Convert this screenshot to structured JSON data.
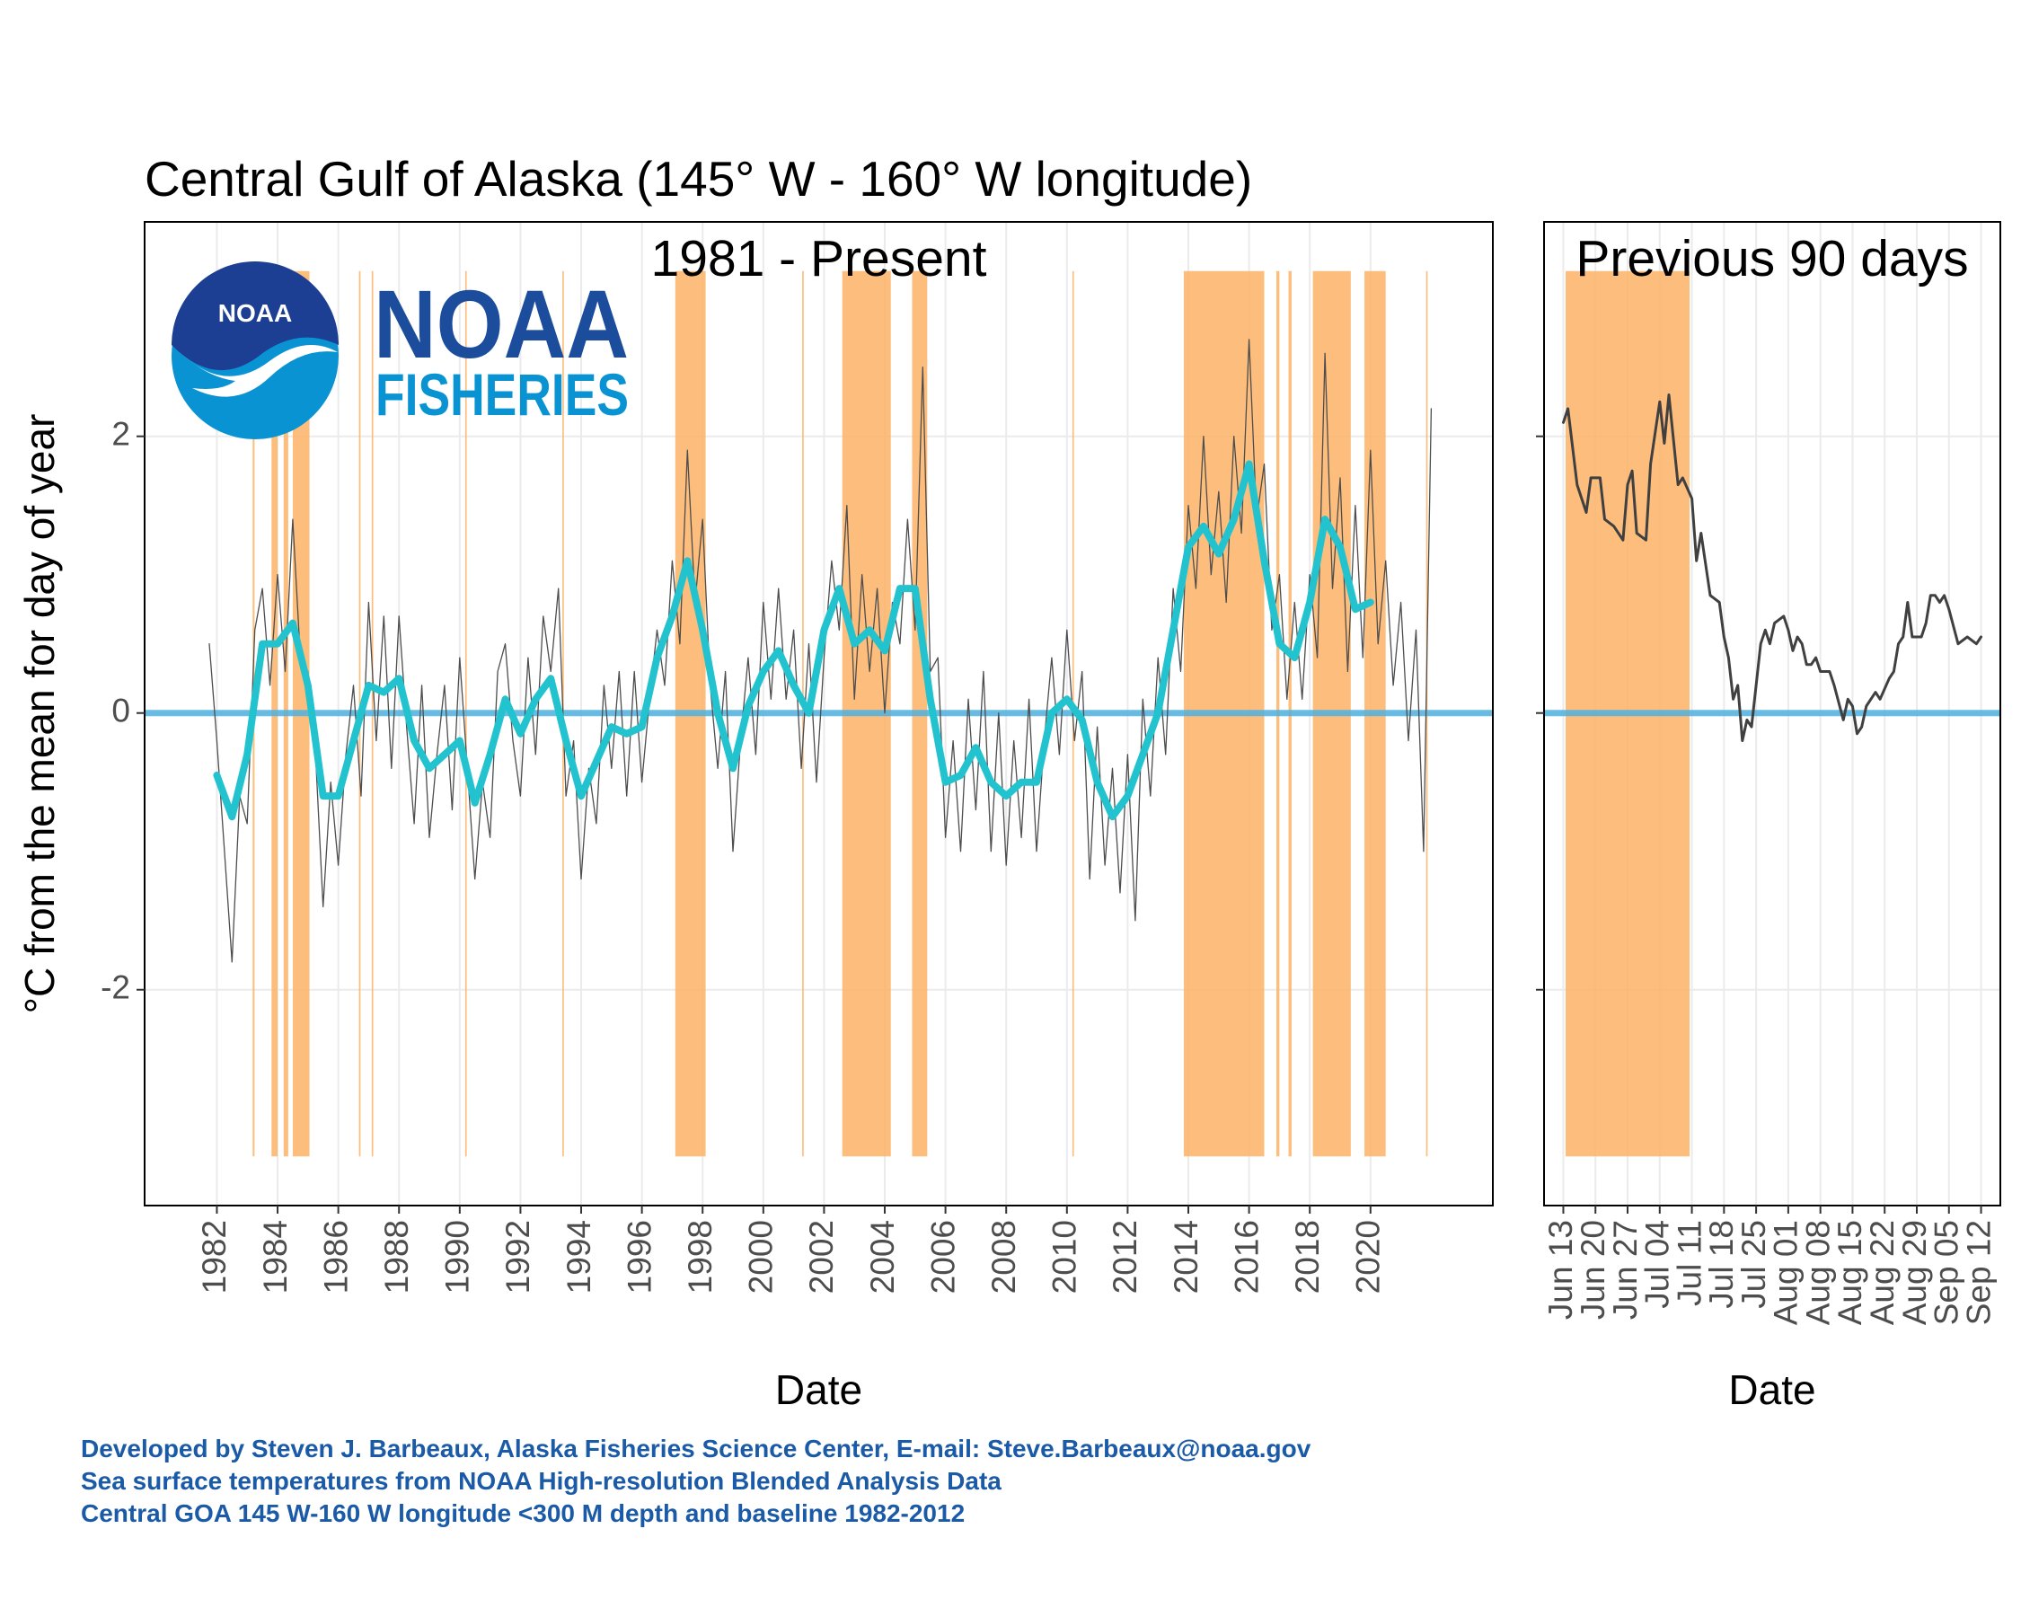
{
  "title": "Central Gulf of Alaska (145° W - 160° W longitude)",
  "logo": {
    "name": "NOAA",
    "division": "FISHERIES"
  },
  "footer": [
    "Developed by Steven J. Barbeaux, Alaska Fisheries Science Center, E-mail: Steve.Barbeaux@noaa.gov",
    "Sea surface temperatures from NOAA High-resolution Blended Analysis Data",
    "Central GOA 145 W-160 W longitude <300 M depth and baseline 1982-2012"
  ],
  "chart_data": [
    {
      "type": "line",
      "title": "1981 - Present",
      "x_label": "Date",
      "y_label": "°C from the mean for day of year",
      "xlim": [
        1979.62,
        2024.03
      ],
      "ylim": [
        -3.56,
        3.55
      ],
      "xticks": [
        1982,
        1984,
        1986,
        1988,
        1990,
        1992,
        1994,
        1996,
        1998,
        2000,
        2002,
        2004,
        2006,
        2008,
        2010,
        2012,
        2014,
        2016,
        2018,
        2020
      ],
      "yticks": [
        -2,
        0,
        2
      ],
      "y_tick_labels": true,
      "grid": true,
      "hline": 0,
      "hline_color": "#4fb0de",
      "band_color": "#fdb366",
      "bands": [
        [
          1983.18,
          1983.24
        ],
        [
          1983.8,
          1984.0
        ],
        [
          1984.2,
          1984.35
        ],
        [
          1984.5,
          1985.05
        ],
        [
          1986.68,
          1986.73
        ],
        [
          1987.1,
          1987.15
        ],
        [
          1990.18,
          1990.23
        ],
        [
          1993.38,
          1993.43
        ],
        [
          1997.1,
          1998.1
        ],
        [
          2001.28,
          2001.33
        ],
        [
          2002.6,
          2004.2
        ],
        [
          2004.9,
          2005.4
        ],
        [
          2010.18,
          2010.23
        ],
        [
          2013.85,
          2016.5
        ],
        [
          2016.9,
          2017.0
        ],
        [
          2017.3,
          2017.4
        ],
        [
          2018.1,
          2019.35
        ],
        [
          2019.8,
          2020.5
        ],
        [
          2021.83,
          2021.88
        ]
      ],
      "series": [
        {
          "color": "#4d4d4d",
          "width": 1.3,
          "x": [
            1981.75,
            1982,
            1982.25,
            1982.5,
            1982.75,
            1983,
            1983.25,
            1983.5,
            1983.75,
            1984,
            1984.25,
            1984.5,
            1984.75,
            1985,
            1985.25,
            1985.5,
            1985.75,
            1986,
            1986.25,
            1986.5,
            1986.75,
            1987,
            1987.25,
            1987.5,
            1987.75,
            1988,
            1988.25,
            1988.5,
            1988.75,
            1989,
            1989.25,
            1989.5,
            1989.75,
            1990,
            1990.25,
            1990.5,
            1990.75,
            1991,
            1991.25,
            1991.5,
            1991.75,
            1992,
            1992.25,
            1992.5,
            1992.75,
            1993,
            1993.25,
            1993.5,
            1993.75,
            1994,
            1994.25,
            1994.5,
            1994.75,
            1995,
            1995.25,
            1995.5,
            1995.75,
            1996,
            1996.25,
            1996.5,
            1996.75,
            1997,
            1997.25,
            1997.5,
            1997.75,
            1998,
            1998.25,
            1998.5,
            1998.75,
            1999,
            1999.25,
            1999.5,
            1999.75,
            2000,
            2000.25,
            2000.5,
            2000.75,
            2001,
            2001.25,
            2001.5,
            2001.75,
            2002,
            2002.25,
            2002.5,
            2002.75,
            2003,
            2003.25,
            2003.5,
            2003.75,
            2004,
            2004.25,
            2004.5,
            2004.75,
            2005,
            2005.25,
            2005.5,
            2005.75,
            2006,
            2006.25,
            2006.5,
            2006.75,
            2007,
            2007.25,
            2007.5,
            2007.75,
            2008,
            2008.25,
            2008.5,
            2008.75,
            2009,
            2009.25,
            2009.5,
            2009.75,
            2010,
            2010.25,
            2010.5,
            2010.75,
            2011,
            2011.25,
            2011.5,
            2011.75,
            2012,
            2012.25,
            2012.5,
            2012.75,
            2013,
            2013.25,
            2013.5,
            2013.75,
            2014,
            2014.25,
            2014.5,
            2014.75,
            2015,
            2015.25,
            2015.5,
            2015.75,
            2016,
            2016.25,
            2016.5,
            2016.75,
            2017,
            2017.25,
            2017.5,
            2017.75,
            2018,
            2018.25,
            2018.5,
            2018.75,
            2019,
            2019.25,
            2019.5,
            2019.75,
            2020,
            2020.25,
            2020.5,
            2020.75,
            2021,
            2021.25,
            2021.5,
            2021.75,
            2022
          ],
          "values": [
            0.5,
            -0.2,
            -1.0,
            -1.8,
            -0.6,
            -0.8,
            0.6,
            0.9,
            0.2,
            1.0,
            0.3,
            1.4,
            0.4,
            0.3,
            -0.3,
            -1.4,
            -0.5,
            -1.1,
            -0.3,
            0.2,
            -0.6,
            0.8,
            -0.2,
            0.7,
            -0.4,
            0.7,
            -0.1,
            -0.8,
            0.2,
            -0.9,
            -0.3,
            0.2,
            -0.7,
            0.4,
            -0.4,
            -1.2,
            -0.5,
            -0.9,
            0.3,
            0.5,
            -0.2,
            -0.6,
            0.4,
            -0.3,
            0.7,
            0.3,
            0.9,
            -0.6,
            -0.2,
            -1.2,
            -0.4,
            -0.8,
            0.2,
            -0.4,
            0.3,
            -0.6,
            0.3,
            -0.5,
            0.1,
            0.6,
            0.2,
            1.1,
            0.5,
            1.9,
            0.8,
            1.4,
            0.2,
            -0.4,
            0.3,
            -1.0,
            -0.2,
            0.4,
            -0.3,
            0.8,
            0.1,
            0.9,
            0.1,
            0.6,
            -0.4,
            0.5,
            -0.5,
            0.4,
            1.1,
            0.6,
            1.5,
            0.1,
            1.0,
            0.3,
            0.9,
            0.0,
            0.8,
            0.5,
            1.4,
            0.6,
            2.5,
            0.3,
            0.4,
            -0.9,
            -0.2,
            -1.0,
            0.1,
            -0.7,
            0.3,
            -1.0,
            0.0,
            -1.1,
            -0.2,
            -0.9,
            0.1,
            -1.0,
            -0.2,
            0.4,
            -0.3,
            0.6,
            -0.2,
            0.3,
            -1.2,
            -0.1,
            -1.1,
            -0.4,
            -1.3,
            -0.3,
            -1.5,
            0.1,
            -0.6,
            0.4,
            -0.3,
            0.9,
            0.3,
            1.5,
            0.9,
            2.0,
            1.0,
            1.6,
            0.8,
            2.0,
            1.3,
            2.7,
            1.4,
            1.8,
            0.6,
            1.0,
            0.1,
            0.8,
            0.1,
            1.0,
            0.4,
            2.6,
            0.9,
            1.7,
            0.3,
            1.5,
            0.4,
            1.9,
            0.5,
            1.1,
            0.2,
            0.8,
            -0.2,
            0.6,
            -1.0,
            2.2
          ]
        },
        {
          "color": "#22c3cf",
          "width": 8,
          "x": [
            1982,
            1982.5,
            1983,
            1983.5,
            1984,
            1984.5,
            1985,
            1985.5,
            1986,
            1986.5,
            1987,
            1987.5,
            1988,
            1988.5,
            1989,
            1989.5,
            1990,
            1990.5,
            1991,
            1991.5,
            1992,
            1992.5,
            1993,
            1993.5,
            1994,
            1994.5,
            1995,
            1995.5,
            1996,
            1996.5,
            1997,
            1997.5,
            1998,
            1998.5,
            1999,
            1999.5,
            2000,
            2000.5,
            2001,
            2001.5,
            2002,
            2002.5,
            2003,
            2003.5,
            2004,
            2004.5,
            2005,
            2005.5,
            2006,
            2006.5,
            2007,
            2007.5,
            2008,
            2008.5,
            2009,
            2009.5,
            2010,
            2010.5,
            2011,
            2011.5,
            2012,
            2012.5,
            2013,
            2013.5,
            2014,
            2014.5,
            2015,
            2015.5,
            2016,
            2016.5,
            2017,
            2017.5,
            2018,
            2018.5,
            2019,
            2019.5,
            2020
          ],
          "values": [
            -0.45,
            -0.75,
            -0.3,
            0.5,
            0.5,
            0.65,
            0.2,
            -0.6,
            -0.6,
            -0.2,
            0.2,
            0.15,
            0.25,
            -0.2,
            -0.4,
            -0.3,
            -0.2,
            -0.65,
            -0.3,
            0.1,
            -0.15,
            0.1,
            0.25,
            -0.2,
            -0.6,
            -0.35,
            -0.1,
            -0.15,
            -0.1,
            0.4,
            0.7,
            1.1,
            0.6,
            0.0,
            -0.4,
            0.05,
            0.3,
            0.45,
            0.2,
            0.0,
            0.6,
            0.9,
            0.5,
            0.6,
            0.45,
            0.9,
            0.9,
            0.1,
            -0.5,
            -0.45,
            -0.25,
            -0.5,
            -0.6,
            -0.5,
            -0.5,
            0.0,
            0.1,
            -0.05,
            -0.5,
            -0.75,
            -0.6,
            -0.3,
            0.0,
            0.6,
            1.2,
            1.35,
            1.15,
            1.4,
            1.8,
            1.1,
            0.5,
            0.4,
            0.8,
            1.4,
            1.2,
            0.75,
            0.8
          ]
        }
      ]
    },
    {
      "type": "line",
      "title": "Previous 90 days",
      "x_label": "Date",
      "xlim": [
        159.8,
        259.2
      ],
      "ylim": [
        -3.56,
        3.55
      ],
      "xticks": [
        {
          "value": 164,
          "label": "Jun 13"
        },
        {
          "value": 171,
          "label": "Jun 20"
        },
        {
          "value": 178,
          "label": "Jun 27"
        },
        {
          "value": 185,
          "label": "Jul 04"
        },
        {
          "value": 192,
          "label": "Jul 11"
        },
        {
          "value": 199,
          "label": "Jul 18"
        },
        {
          "value": 206,
          "label": "Jul 25"
        },
        {
          "value": 213,
          "label": "Aug 01"
        },
        {
          "value": 220,
          "label": "Aug 08"
        },
        {
          "value": 227,
          "label": "Aug 15"
        },
        {
          "value": 234,
          "label": "Aug 22"
        },
        {
          "value": 241,
          "label": "Aug 29"
        },
        {
          "value": 248,
          "label": "Sep 05"
        },
        {
          "value": 255,
          "label": "Sep 12"
        }
      ],
      "yticks": [
        -2,
        0,
        2
      ],
      "y_tick_labels": false,
      "grid": true,
      "hline": 0,
      "hline_color": "#4fb0de",
      "band_color": "#fdb366",
      "bands": [
        [
          164.5,
          191.5
        ]
      ],
      "series": [
        {
          "color": "#404040",
          "width": 3,
          "x": [
            164,
            165,
            167,
            169,
            170,
            172,
            173,
            175,
            177,
            178,
            179,
            180,
            182,
            183,
            185,
            186,
            187,
            189,
            190,
            192,
            193,
            194,
            196,
            198,
            199,
            200,
            201,
            202,
            203,
            204,
            205,
            206,
            207,
            208,
            209,
            210,
            212,
            213,
            214,
            215,
            216,
            217,
            218,
            219,
            220,
            221,
            222,
            223,
            225,
            226,
            227,
            228,
            229,
            230,
            232,
            233,
            235,
            236,
            237,
            238,
            239,
            240,
            242,
            243,
            244,
            245,
            246,
            247,
            248,
            250,
            252,
            254,
            255
          ],
          "values": [
            2.1,
            2.2,
            1.65,
            1.45,
            1.7,
            1.7,
            1.4,
            1.35,
            1.25,
            1.65,
            1.75,
            1.3,
            1.25,
            1.8,
            2.25,
            1.95,
            2.3,
            1.65,
            1.7,
            1.55,
            1.1,
            1.3,
            0.85,
            0.8,
            0.55,
            0.4,
            0.1,
            0.2,
            -0.2,
            -0.05,
            -0.1,
            0.2,
            0.5,
            0.6,
            0.5,
            0.65,
            0.7,
            0.6,
            0.45,
            0.55,
            0.5,
            0.35,
            0.35,
            0.4,
            0.3,
            0.3,
            0.3,
            0.2,
            -0.05,
            0.1,
            0.05,
            -0.15,
            -0.1,
            0.05,
            0.15,
            0.1,
            0.25,
            0.3,
            0.5,
            0.55,
            0.8,
            0.55,
            0.55,
            0.65,
            0.85,
            0.85,
            0.8,
            0.85,
            0.75,
            0.5,
            0.55,
            0.5,
            0.55
          ]
        }
      ]
    }
  ]
}
